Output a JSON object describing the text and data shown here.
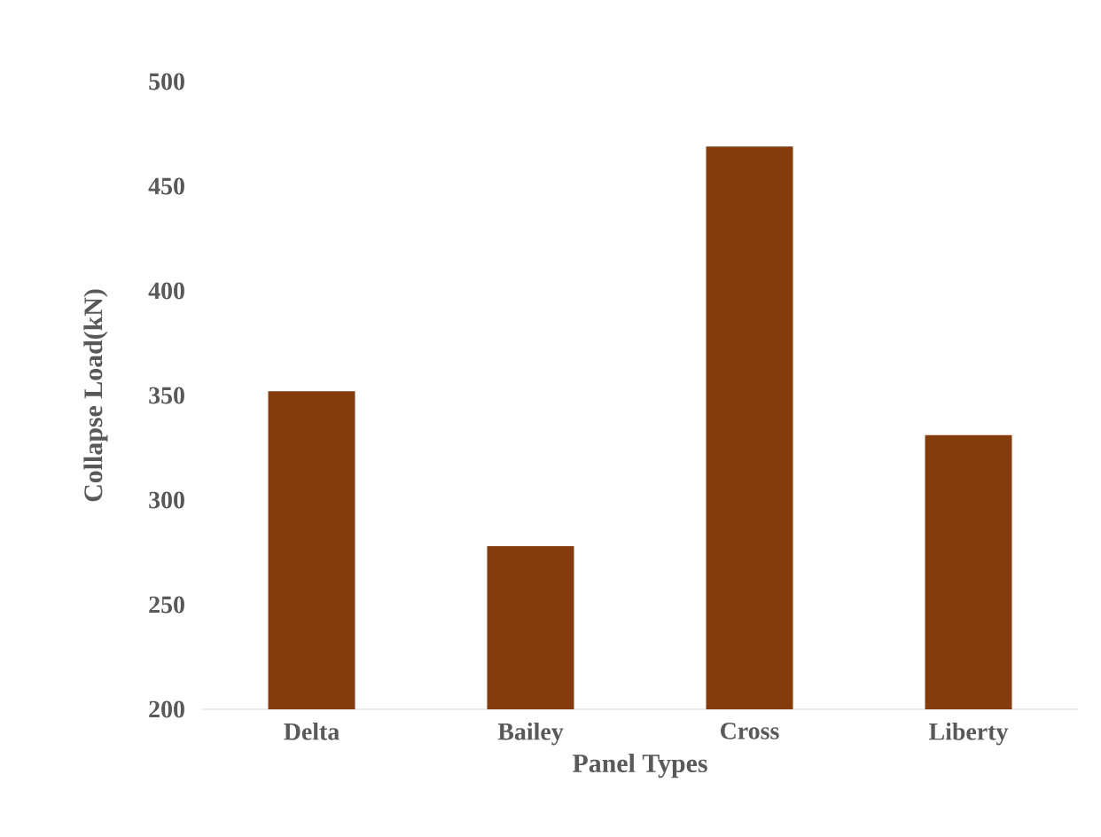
{
  "chart_data": {
    "type": "bar",
    "xlabel": "Panel Types",
    "ylabel": "Collapse Load(kN)",
    "categories": [
      "Delta",
      "Bailey",
      "Cross",
      "Liberty"
    ],
    "values": [
      352,
      278,
      469,
      331
    ],
    "color": "#843c0c",
    "ylim": [
      200,
      500
    ],
    "yticks": [
      200,
      250,
      300,
      350,
      400,
      450,
      500
    ]
  }
}
